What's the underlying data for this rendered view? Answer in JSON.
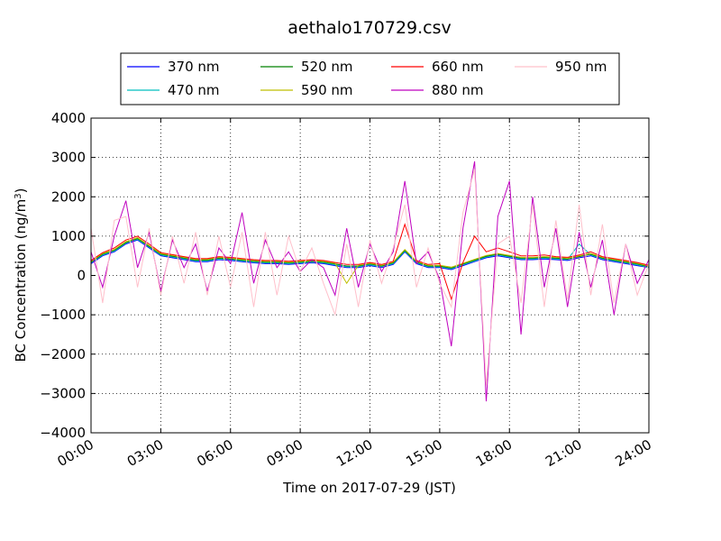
{
  "chart_data": {
    "type": "line",
    "title": "aethalo170729.csv",
    "xlabel": "Time on 2017-07-29 (JST)",
    "ylabel_main": "BC Concentration (ng/m",
    "ylabel_sup": "3",
    "ylabel_end": ")",
    "xlim": [
      0,
      24
    ],
    "ylim": [
      -4000,
      4000
    ],
    "x_ticks": [
      0,
      3,
      6,
      9,
      12,
      15,
      18,
      21,
      24
    ],
    "x_tick_labels": [
      "00:00",
      "03:00",
      "06:00",
      "09:00",
      "12:00",
      "15:00",
      "18:00",
      "21:00",
      "24:00"
    ],
    "y_ticks": [
      -4000,
      -3000,
      -2000,
      -1000,
      0,
      1000,
      2000,
      3000,
      4000
    ],
    "y_tick_labels": [
      "−4000",
      "−3000",
      "−2000",
      "−1000",
      "0",
      "1000",
      "2000",
      "3000",
      "4000"
    ],
    "grid": true,
    "legend_position": "top, outside",
    "series": [
      {
        "name": "370 nm",
        "color": "#0000ff",
        "x": [
          0,
          0.5,
          1,
          1.5,
          2,
          2.5,
          3,
          3.5,
          4,
          4.5,
          5,
          5.5,
          6,
          6.5,
          7,
          7.5,
          8,
          8.5,
          9,
          9.5,
          10,
          10.5,
          11,
          11.5,
          12,
          12.5,
          13,
          13.5,
          14,
          14.5,
          15,
          15.5,
          16,
          16.5,
          17,
          17.5,
          18,
          18.5,
          19,
          19.5,
          20,
          20.5,
          21,
          21.5,
          22,
          22.5,
          23,
          23.5,
          24
        ],
        "y": [
          300,
          500,
          600,
          800,
          900,
          700,
          500,
          450,
          400,
          350,
          350,
          400,
          380,
          350,
          320,
          300,
          300,
          280,
          300,
          320,
          300,
          250,
          200,
          200,
          250,
          200,
          280,
          600,
          300,
          200,
          200,
          150,
          250,
          350,
          450,
          500,
          450,
          400,
          400,
          420,
          400,
          380,
          450,
          500,
          400,
          350,
          300,
          250,
          200
        ]
      },
      {
        "name": "470 nm",
        "color": "#00bfbf",
        "x": [
          0,
          0.5,
          1,
          1.5,
          2,
          2.5,
          3,
          3.5,
          4,
          4.5,
          5,
          5.5,
          6,
          6.5,
          7,
          7.5,
          8,
          8.5,
          9,
          9.5,
          10,
          10.5,
          11,
          11.5,
          12,
          12.5,
          13,
          13.5,
          14,
          14.5,
          15,
          15.5,
          16,
          16.5,
          17,
          17.5,
          18,
          18.5,
          19,
          19.5,
          20,
          20.5,
          21,
          21.5,
          22,
          22.5,
          23,
          23.5,
          24
        ],
        "y": [
          320,
          520,
          620,
          820,
          920,
          720,
          520,
          470,
          420,
          370,
          370,
          420,
          400,
          370,
          340,
          320,
          320,
          300,
          320,
          340,
          320,
          270,
          220,
          220,
          270,
          220,
          300,
          620,
          320,
          220,
          220,
          170,
          270,
          370,
          470,
          520,
          470,
          420,
          420,
          440,
          420,
          400,
          800,
          520,
          420,
          370,
          320,
          270,
          200
        ]
      },
      {
        "name": "520 nm",
        "color": "#008000",
        "x": [
          0,
          0.5,
          1,
          1.5,
          2,
          2.5,
          3,
          3.5,
          4,
          4.5,
          5,
          5.5,
          6,
          6.5,
          7,
          7.5,
          8,
          8.5,
          9,
          9.5,
          10,
          10.5,
          11,
          11.5,
          12,
          12.5,
          13,
          13.5,
          14,
          14.5,
          15,
          15.5,
          16,
          16.5,
          17,
          17.5,
          18,
          18.5,
          19,
          19.5,
          20,
          20.5,
          21,
          21.5,
          22,
          22.5,
          23,
          23.5,
          24
        ],
        "y": [
          340,
          540,
          640,
          840,
          940,
          740,
          540,
          490,
          440,
          390,
          390,
          440,
          420,
          390,
          360,
          340,
          340,
          320,
          340,
          360,
          340,
          290,
          240,
          240,
          290,
          240,
          320,
          640,
          340,
          240,
          240,
          190,
          290,
          390,
          490,
          540,
          490,
          440,
          440,
          460,
          440,
          420,
          480,
          540,
          440,
          390,
          340,
          290,
          220
        ]
      },
      {
        "name": "590 nm",
        "color": "#bfbf00",
        "x": [
          0,
          0.5,
          1,
          1.5,
          2,
          2.5,
          3,
          3.5,
          4,
          4.5,
          5,
          5.5,
          6,
          6.5,
          7,
          7.5,
          8,
          8.5,
          9,
          9.5,
          10,
          10.5,
          11,
          11.5,
          12,
          12.5,
          13,
          13.5,
          14,
          14.5,
          15,
          15.5,
          16,
          16.5,
          17,
          17.5,
          18,
          18.5,
          19,
          19.5,
          20,
          20.5,
          21,
          21.5,
          22,
          22.5,
          23,
          23.5,
          24
        ],
        "y": [
          360,
          560,
          660,
          860,
          960,
          760,
          560,
          510,
          460,
          410,
          410,
          460,
          440,
          410,
          380,
          360,
          360,
          340,
          360,
          380,
          360,
          310,
          -200,
          260,
          310,
          260,
          340,
          660,
          360,
          260,
          260,
          210,
          310,
          410,
          510,
          560,
          510,
          460,
          460,
          480,
          460,
          440,
          500,
          560,
          460,
          410,
          360,
          310,
          240
        ]
      },
      {
        "name": "660 nm",
        "color": "#ff0000",
        "x": [
          0,
          0.5,
          1,
          1.5,
          2,
          2.5,
          3,
          3.5,
          4,
          4.5,
          5,
          5.5,
          6,
          6.5,
          7,
          7.5,
          8,
          8.5,
          9,
          9.5,
          10,
          10.5,
          11,
          11.5,
          12,
          12.5,
          13,
          13.5,
          14,
          14.5,
          15,
          15.5,
          16,
          16.5,
          17,
          17.5,
          18,
          18.5,
          19,
          19.5,
          20,
          20.5,
          21,
          21.5,
          22,
          22.5,
          23,
          23.5,
          24
        ],
        "y": [
          380,
          580,
          700,
          900,
          1000,
          800,
          580,
          530,
          480,
          430,
          430,
          480,
          460,
          430,
          400,
          380,
          380,
          360,
          380,
          400,
          380,
          330,
          280,
          280,
          330,
          280,
          360,
          1300,
          380,
          280,
          300,
          -600,
          330,
          1000,
          600,
          700,
          600,
          500,
          500,
          520,
          480,
          460,
          520,
          600,
          480,
          430,
          380,
          330,
          260
        ]
      },
      {
        "name": "880 nm",
        "color": "#bf00bf",
        "x": [
          0,
          0.5,
          1,
          1.5,
          2,
          2.5,
          3,
          3.5,
          4,
          4.5,
          5,
          5.5,
          6,
          6.5,
          7,
          7.5,
          8,
          8.5,
          9,
          9.5,
          10,
          10.5,
          11,
          11.5,
          12,
          12.5,
          13,
          13.5,
          14,
          14.5,
          15,
          15.5,
          16,
          16.5,
          17,
          17.5,
          18,
          18.5,
          19,
          19.5,
          20,
          20.5,
          21,
          21.5,
          22,
          22.5,
          23,
          23.5,
          24
        ],
        "y": [
          600,
          -300,
          1000,
          1900,
          200,
          1100,
          -400,
          900,
          200,
          800,
          -400,
          700,
          300,
          1600,
          -200,
          900,
          200,
          600,
          100,
          400,
          200,
          -500,
          1200,
          -300,
          800,
          100,
          600,
          2400,
          300,
          600,
          -100,
          -1800,
          1200,
          2900,
          -3200,
          1500,
          2400,
          -1500,
          2000,
          -300,
          1200,
          -800,
          1100,
          -300,
          900,
          -1000,
          800,
          -200,
          400
        ]
      },
      {
        "name": "950 nm",
        "color": "#ffc0cb",
        "x": [
          0,
          0.5,
          1,
          1.5,
          2,
          2.5,
          3,
          3.5,
          4,
          4.5,
          5,
          5.5,
          6,
          6.5,
          7,
          7.5,
          8,
          8.5,
          9,
          9.5,
          10,
          10.5,
          11,
          11.5,
          12,
          12.5,
          13,
          13.5,
          14,
          14.5,
          15,
          15.5,
          16,
          16.5,
          17,
          17.5,
          18,
          18.5,
          19,
          19.5,
          20,
          20.5,
          21,
          21.5,
          22,
          22.5,
          23,
          23.5,
          24
        ],
        "y": [
          1200,
          -700,
          1400,
          1500,
          -300,
          1200,
          -500,
          1000,
          -200,
          1100,
          -500,
          1000,
          -300,
          1100,
          -800,
          1100,
          -500,
          1000,
          100,
          700,
          -200,
          -1000,
          800,
          -800,
          900,
          -200,
          700,
          1800,
          -300,
          700,
          -200,
          -800,
          1600,
          2700,
          -2800,
          800,
          1000,
          -700,
          1800,
          -800,
          1400,
          -600,
          1800,
          -500,
          1300,
          -700,
          800,
          -500,
          300
        ]
      }
    ]
  }
}
